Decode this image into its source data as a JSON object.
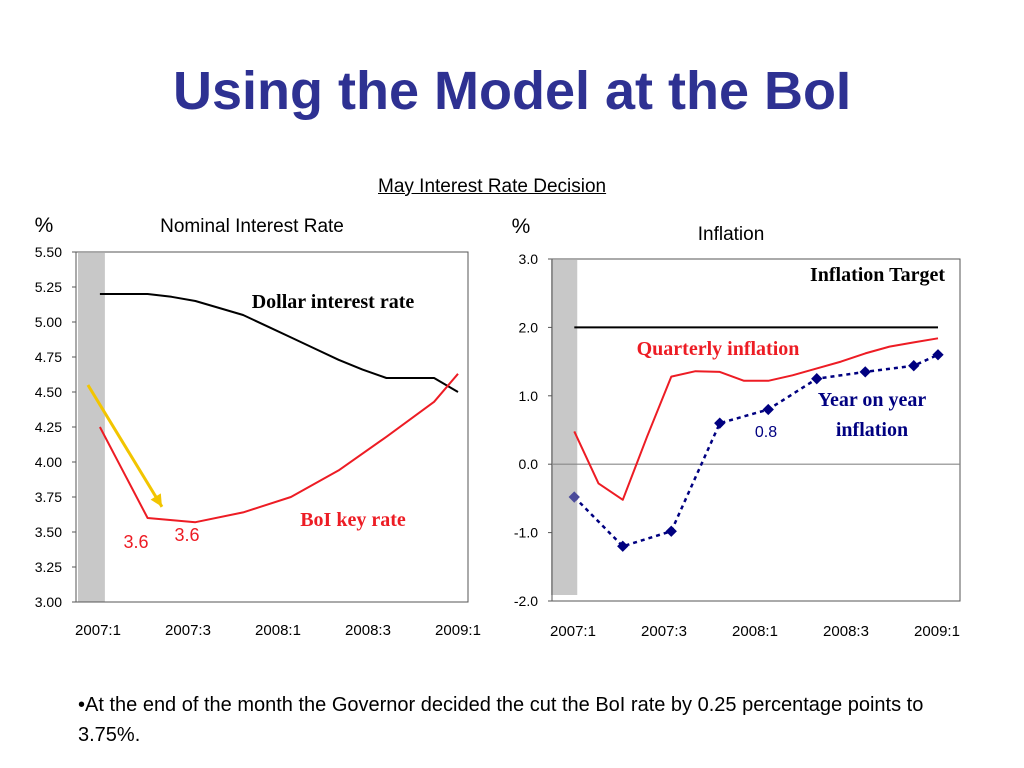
{
  "slide": {
    "title": "Using the Model at the BoI",
    "subtitle": "May Interest Rate Decision",
    "note": "•At the end of the month the Governor decided the cut the BoI rate by 0.25 percentage points to 3.75%."
  },
  "chart_data": [
    {
      "type": "line",
      "title": "Nominal Interest Rate",
      "ylabel": "%",
      "ylim": [
        3.0,
        5.5
      ],
      "yticks": [
        "3.00",
        "3.25",
        "3.50",
        "3.75",
        "4.00",
        "4.25",
        "4.50",
        "4.75",
        "5.00",
        "5.25",
        "5.50"
      ],
      "xlim": [
        0,
        8
      ],
      "xtick_labels": [
        "2007:1",
        "2007:3",
        "2008:1",
        "2008:3",
        "2009:1"
      ],
      "grid": false,
      "shaded_period": [
        0,
        0.5
      ],
      "series": [
        {
          "name": "Dollar interest rate",
          "color": "#000000",
          "style": "solid",
          "x": [
            0.5,
            1,
            1.5,
            2,
            2.5,
            3,
            3.5,
            4,
            4.5,
            5,
            5.5,
            6,
            6.5,
            7,
            7.5,
            8
          ],
          "values": [
            5.2,
            5.2,
            5.2,
            5.18,
            5.15,
            5.1,
            5.05,
            4.97,
            4.89,
            4.81,
            4.73,
            4.66,
            4.6,
            4.6,
            4.6,
            4.5
          ]
        },
        {
          "name": "BoI key rate",
          "color": "#ED1C24",
          "style": "solid",
          "x": [
            0.5,
            1.5,
            2.5,
            3.5,
            4.5,
            5.5,
            6.5,
            7.5,
            8
          ],
          "values": [
            4.25,
            3.6,
            3.57,
            3.64,
            3.75,
            3.94,
            4.18,
            4.43,
            4.63
          ]
        }
      ],
      "annotations": [
        {
          "text": "Dollar interest rate",
          "color": "#000000"
        },
        {
          "text": "BoI key rate",
          "color": "#ED1C24"
        },
        {
          "text": "3.6",
          "color": "#ED1C24"
        },
        {
          "text": "3.6",
          "color": "#ED1C24"
        }
      ],
      "arrow": {
        "color": "#F2C500",
        "from": [
          0.25,
          4.55
        ],
        "to": [
          1.8,
          3.68
        ]
      }
    },
    {
      "type": "line",
      "title": "Inflation",
      "ylabel": "%",
      "ylim": [
        -2.0,
        3.0
      ],
      "yticks": [
        "-2.0",
        "-1.0",
        "0.0",
        "1.0",
        "2.0",
        "3.0"
      ],
      "xlim": [
        0,
        8
      ],
      "xtick_labels": [
        "2007:1",
        "2007:3",
        "2008:1",
        "2008:3",
        "2009:1"
      ],
      "grid": false,
      "shaded_period": [
        0,
        0.5
      ],
      "series": [
        {
          "name": "Inflation Target",
          "color": "#000000",
          "style": "solid",
          "x": [
            0.5,
            8
          ],
          "values": [
            2.0,
            2.0
          ]
        },
        {
          "name": "Quarterly inflation",
          "color": "#ED1C24",
          "style": "solid",
          "x": [
            0.5,
            1,
            1.5,
            2,
            2.5,
            3,
            3.5,
            4,
            4.5,
            5,
            5.5,
            6,
            6.5,
            7,
            7.5,
            8
          ],
          "values": [
            0.48,
            -0.28,
            -0.52,
            0.4,
            1.28,
            1.36,
            1.35,
            1.22,
            1.22,
            1.3,
            1.4,
            1.5,
            1.62,
            1.72,
            1.78,
            1.84
          ]
        },
        {
          "name": "Year on year inflation",
          "color": "#000080",
          "style": "dotted-markers",
          "x": [
            0.5,
            1.5,
            2.5,
            3.5,
            4.5,
            5.5,
            6.5,
            7.5,
            8
          ],
          "values": [
            -0.48,
            -1.2,
            -0.98,
            0.6,
            0.8,
            1.25,
            1.35,
            1.44,
            1.6
          ]
        }
      ],
      "annotations": [
        {
          "text": "Inflation Target",
          "color": "#000000"
        },
        {
          "text": "Quarterly inflation",
          "color": "#ED1C24"
        },
        {
          "text": "Year on year",
          "color": "#000080"
        },
        {
          "text": "inflation",
          "color": "#000080"
        },
        {
          "text": "0.8",
          "color": "#000080"
        }
      ]
    }
  ]
}
